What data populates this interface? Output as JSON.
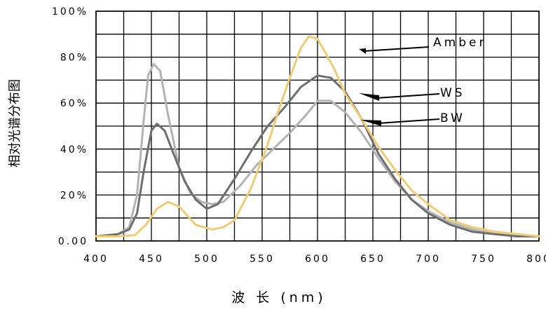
{
  "chart_data": {
    "type": "line",
    "title": "",
    "xlabel": "波 长 (nm)",
    "ylabel": "相对光谱分布图",
    "xlim": [
      400,
      800
    ],
    "ylim": [
      0,
      100
    ],
    "x_ticks": [
      "400",
      "450",
      "500",
      "550",
      "600",
      "650",
      "700",
      "750",
      "800"
    ],
    "y_ticks": [
      "0.00",
      "20%",
      "40%",
      "60%",
      "80%",
      "100%"
    ],
    "grid": true,
    "series": [
      {
        "name": "Amber",
        "color": "#eecc77",
        "x": [
          400,
          420,
          435,
          445,
          455,
          465,
          475,
          490,
          505,
          515,
          525,
          540,
          555,
          565,
          575,
          585,
          592,
          600,
          607,
          615,
          625,
          640,
          655,
          670,
          685,
          700,
          720,
          740,
          760,
          780,
          800
        ],
        "y": [
          2,
          2,
          2.5,
          7,
          14,
          17,
          15,
          7,
          5,
          6,
          9,
          23,
          42,
          57,
          71,
          84,
          89,
          88,
          82,
          75,
          64,
          53,
          41,
          31,
          22,
          16,
          9,
          6,
          4,
          3,
          2
        ]
      },
      {
        "name": "WS",
        "color": "#6e6e6e",
        "x": [
          400,
          420,
          430,
          437,
          443,
          450,
          455,
          462,
          470,
          480,
          490,
          500,
          510,
          525,
          540,
          555,
          570,
          585,
          600,
          612,
          625,
          640,
          655,
          670,
          685,
          700,
          720,
          740,
          760,
          780,
          800
        ],
        "y": [
          2,
          3,
          5,
          12,
          30,
          48,
          51,
          48,
          38,
          26,
          18,
          14,
          16,
          27,
          39,
          50,
          58,
          67,
          72,
          71,
          65,
          53,
          38,
          27,
          18,
          12,
          7,
          4,
          3,
          2,
          2
        ]
      },
      {
        "name": "BW",
        "color": "#b3b3b3",
        "x": [
          400,
          420,
          430,
          437,
          443,
          447,
          452,
          458,
          465,
          475,
          485,
          495,
          505,
          515,
          530,
          545,
          560,
          575,
          590,
          600,
          612,
          625,
          640,
          655,
          670,
          685,
          700,
          720,
          740,
          760,
          780,
          800
        ],
        "y": [
          2,
          3,
          6,
          20,
          52,
          72,
          77,
          74,
          55,
          32,
          21,
          17,
          16,
          17,
          24,
          33,
          40,
          47,
          55,
          61,
          61,
          56,
          47,
          36,
          26,
          18,
          13,
          8,
          5,
          3,
          2,
          2
        ]
      }
    ],
    "annotations": [
      {
        "text": "Amber",
        "series": "Amber",
        "at_x": 619
      },
      {
        "text": "WS",
        "series": "WS",
        "at_x": 609
      },
      {
        "text": "BW",
        "series": "BW",
        "at_x": 607
      }
    ]
  }
}
